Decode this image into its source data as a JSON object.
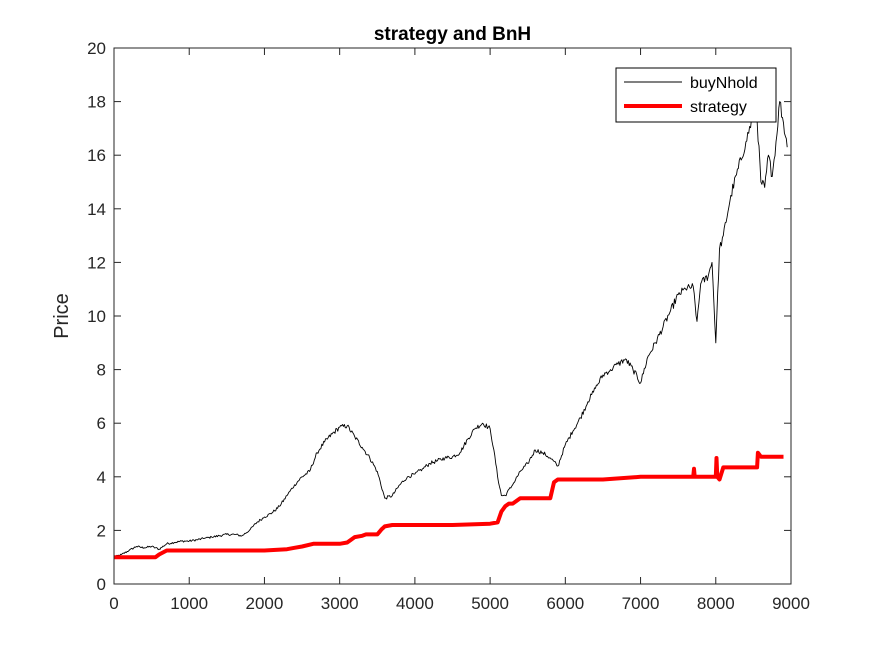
{
  "chart_data": {
    "type": "line",
    "title": "strategy and BnH",
    "xlabel": "",
    "ylabel": "Price",
    "xlim": [
      0,
      9000
    ],
    "ylim": [
      0,
      20
    ],
    "xticks": [
      0,
      1000,
      2000,
      3000,
      4000,
      5000,
      6000,
      7000,
      8000,
      9000
    ],
    "yticks": [
      0,
      2,
      4,
      6,
      8,
      10,
      12,
      14,
      16,
      18,
      20
    ],
    "grid": false,
    "legend_position": "top-right",
    "series": [
      {
        "name": "buyNhold",
        "color": "#000000",
        "style": "thin",
        "x": [
          0,
          100,
          200,
          300,
          400,
          500,
          600,
          700,
          800,
          900,
          1000,
          1100,
          1200,
          1300,
          1400,
          1500,
          1600,
          1700,
          1800,
          1900,
          2000,
          2100,
          2200,
          2300,
          2400,
          2500,
          2600,
          2700,
          2800,
          2900,
          3000,
          3100,
          3200,
          3300,
          3400,
          3500,
          3600,
          3700,
          3800,
          3900,
          4000,
          4100,
          4200,
          4300,
          4400,
          4500,
          4600,
          4700,
          4800,
          4900,
          5000,
          5050,
          5100,
          5150,
          5200,
          5300,
          5400,
          5500,
          5600,
          5700,
          5800,
          5900,
          6000,
          6100,
          6200,
          6300,
          6400,
          6500,
          6600,
          6700,
          6800,
          6900,
          7000,
          7100,
          7200,
          7300,
          7400,
          7500,
          7600,
          7700,
          7750,
          7800,
          7900,
          7950,
          8000,
          8050,
          8100,
          8200,
          8300,
          8400,
          8500,
          8550,
          8600,
          8650,
          8700,
          8750,
          8800,
          8850,
          8900,
          8950
        ],
        "y": [
          1.0,
          1.1,
          1.25,
          1.4,
          1.35,
          1.4,
          1.3,
          1.5,
          1.55,
          1.6,
          1.6,
          1.65,
          1.7,
          1.75,
          1.8,
          1.85,
          1.85,
          1.8,
          2.0,
          2.3,
          2.5,
          2.65,
          2.9,
          3.3,
          3.7,
          4.0,
          4.2,
          4.9,
          5.3,
          5.6,
          5.85,
          5.9,
          5.5,
          5.1,
          4.7,
          4.2,
          3.2,
          3.3,
          3.7,
          4.0,
          4.1,
          4.3,
          4.5,
          4.6,
          4.7,
          4.75,
          4.9,
          5.4,
          5.8,
          6.0,
          5.8,
          5.0,
          4.0,
          3.3,
          3.3,
          3.7,
          4.2,
          4.5,
          5.0,
          4.9,
          4.7,
          4.4,
          5.2,
          5.7,
          6.2,
          6.8,
          7.3,
          7.8,
          8.0,
          8.2,
          8.4,
          8.0,
          7.5,
          8.5,
          9.0,
          9.6,
          10.2,
          10.8,
          11.0,
          11.1,
          9.8,
          11.2,
          11.5,
          12.0,
          9.0,
          12.5,
          13.0,
          14.5,
          15.5,
          16.5,
          17.5,
          17.3,
          15.0,
          14.8,
          16.0,
          15.2,
          16.5,
          18.0,
          17.2,
          16.3
        ]
      },
      {
        "name": "strategy",
        "color": "#ff0000",
        "style": "thick",
        "x": [
          0,
          300,
          550,
          600,
          700,
          1000,
          1500,
          2000,
          2300,
          2400,
          2500,
          2650,
          2700,
          2900,
          3000,
          3100,
          3200,
          3300,
          3350,
          3500,
          3560,
          3600,
          3700,
          4000,
          4500,
          5000,
          5100,
          5150,
          5200,
          5250,
          5300,
          5400,
          5500,
          5800,
          5850,
          5900,
          6000,
          6500,
          7000,
          7200,
          7700,
          7710,
          7720,
          8000,
          8010,
          8020,
          8050,
          8100,
          8200,
          8500,
          8550,
          8560,
          8600,
          8700,
          8900
        ],
        "y": [
          1.0,
          1.0,
          1.0,
          1.1,
          1.25,
          1.25,
          1.25,
          1.25,
          1.3,
          1.35,
          1.4,
          1.5,
          1.5,
          1.5,
          1.5,
          1.55,
          1.75,
          1.8,
          1.85,
          1.85,
          2.05,
          2.15,
          2.2,
          2.2,
          2.2,
          2.25,
          2.3,
          2.7,
          2.9,
          3.0,
          3.0,
          3.2,
          3.2,
          3.2,
          3.8,
          3.9,
          3.9,
          3.9,
          4.0,
          4.0,
          4.0,
          4.3,
          4.0,
          4.0,
          4.7,
          4.0,
          3.9,
          4.35,
          4.35,
          4.35,
          4.35,
          4.9,
          4.75,
          4.75,
          4.75
        ]
      }
    ]
  }
}
